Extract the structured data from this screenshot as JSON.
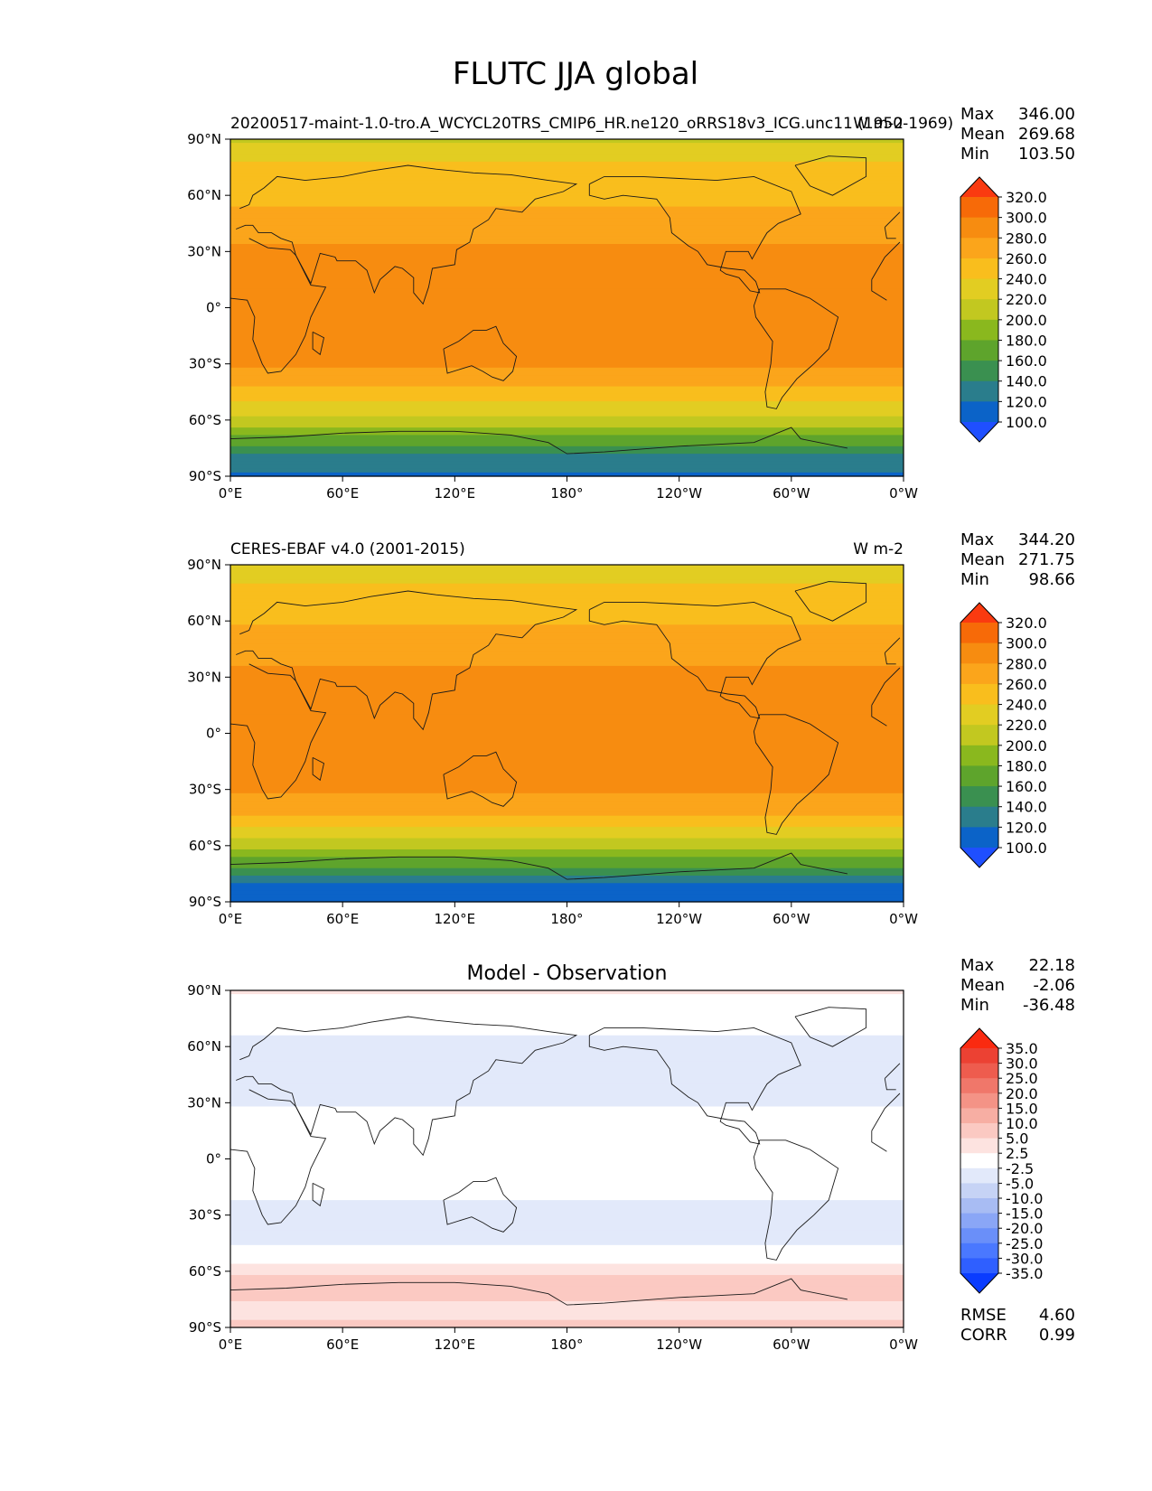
{
  "figure": {
    "title": "FLUTC JJA global"
  },
  "chart_data": [
    {
      "type": "heatmap",
      "panel": "test",
      "left_title": "20200517-maint-1.0-tro.A_WCYCL20TRS_CMIP6_HR.ne120_oRRS18v3_ICG.unc11 (1950-1969)",
      "right_title": "W m-2",
      "center_title": "",
      "stats": {
        "max_label": "Max",
        "max": "346.00",
        "mean_label": "Mean",
        "mean": "269.68",
        "min_label": "Min",
        "min": "103.50"
      },
      "colorbar": {
        "levels": [
          "100.0",
          "120.0",
          "140.0",
          "160.0",
          "180.0",
          "200.0",
          "220.0",
          "240.0",
          "260.0",
          "280.0",
          "300.0",
          "320.0"
        ],
        "colors": [
          "#1f4fff",
          "#0b63c8",
          "#2a7d8c",
          "#3a9050",
          "#5ea42c",
          "#8ab81e",
          "#c2c820",
          "#e2cd22",
          "#f9be1d",
          "#fba51b",
          "#f78c10",
          "#f76a08",
          "#fa3a10"
        ]
      },
      "x_ticks": [
        "0°E",
        "60°E",
        "120°E",
        "180°",
        "120°W",
        "60°W",
        "0°W"
      ],
      "y_ticks": [
        "90°N",
        "60°N",
        "30°N",
        "0°",
        "30°S",
        "60°S",
        "90°S"
      ],
      "zonal_mean_profile": [
        {
          "lat": 90,
          "value": 215
        },
        {
          "lat": 75,
          "value": 245
        },
        {
          "lat": 60,
          "value": 255
        },
        {
          "lat": 45,
          "value": 268
        },
        {
          "lat": 30,
          "value": 285
        },
        {
          "lat": 15,
          "value": 290
        },
        {
          "lat": 0,
          "value": 288
        },
        {
          "lat": -15,
          "value": 295
        },
        {
          "lat": -30,
          "value": 283
        },
        {
          "lat": -45,
          "value": 255
        },
        {
          "lat": -60,
          "value": 212
        },
        {
          "lat": -70,
          "value": 175
        },
        {
          "lat": -80,
          "value": 135
        },
        {
          "lat": -90,
          "value": 115
        }
      ]
    },
    {
      "type": "heatmap",
      "panel": "reference",
      "left_title": "CERES-EBAF v4.0 (2001-2015)",
      "right_title": "W m-2",
      "center_title": "",
      "stats": {
        "max_label": "Max",
        "max": "344.20",
        "mean_label": "Mean",
        "mean": "271.75",
        "min_label": "Min",
        "min": "98.66"
      },
      "colorbar": {
        "levels": [
          "100.0",
          "120.0",
          "140.0",
          "160.0",
          "180.0",
          "200.0",
          "220.0",
          "240.0",
          "260.0",
          "280.0",
          "300.0",
          "320.0"
        ],
        "colors": [
          "#1f4fff",
          "#0b63c8",
          "#2a7d8c",
          "#3a9050",
          "#5ea42c",
          "#8ab81e",
          "#c2c820",
          "#e2cd22",
          "#f9be1d",
          "#fba51b",
          "#f78c10",
          "#f76a08",
          "#fa3a10"
        ]
      },
      "x_ticks": [
        "0°E",
        "60°E",
        "120°E",
        "180°",
        "120°W",
        "60°W",
        "0°W"
      ],
      "y_ticks": [
        "90°N",
        "60°N",
        "30°N",
        "0°",
        "30°S",
        "60°S",
        "90°S"
      ],
      "zonal_mean_profile": [
        {
          "lat": 90,
          "value": 218
        },
        {
          "lat": 75,
          "value": 248
        },
        {
          "lat": 60,
          "value": 258
        },
        {
          "lat": 45,
          "value": 270
        },
        {
          "lat": 30,
          "value": 287
        },
        {
          "lat": 15,
          "value": 292
        },
        {
          "lat": 0,
          "value": 290
        },
        {
          "lat": -15,
          "value": 296
        },
        {
          "lat": -30,
          "value": 285
        },
        {
          "lat": -45,
          "value": 258
        },
        {
          "lat": -60,
          "value": 210
        },
        {
          "lat": -70,
          "value": 165
        },
        {
          "lat": -80,
          "value": 115
        },
        {
          "lat": -90,
          "value": 105
        }
      ]
    },
    {
      "type": "heatmap",
      "panel": "difference",
      "left_title": "",
      "right_title": "",
      "center_title": "Model - Observation",
      "stats": {
        "max_label": "Max",
        "max": "22.18",
        "mean_label": "Mean",
        "mean": "-2.06",
        "min_label": "Min",
        "min": "-36.48"
      },
      "extra_stats": {
        "rmse_label": "RMSE",
        "rmse": "4.60",
        "corr_label": "CORR",
        "corr": "0.99"
      },
      "colorbar": {
        "levels": [
          "-35.0",
          "-30.0",
          "-25.0",
          "-20.0",
          "-15.0",
          "-10.0",
          "-5.0",
          "-2.5",
          "2.5",
          "5.0",
          "10.0",
          "15.0",
          "20.0",
          "25.0",
          "30.0",
          "35.0"
        ],
        "colors": [
          "#0a3cff",
          "#2f5fff",
          "#4a78ff",
          "#6a8ff9",
          "#8aa6f6",
          "#a8bcf3",
          "#c6d3f5",
          "#e2e9fa",
          "#ffffff",
          "#fde3e0",
          "#fbc9c2",
          "#f7aea3",
          "#f49386",
          "#f0776a",
          "#ee5c4e",
          "#ec4133",
          "#fa2a10"
        ]
      },
      "x_ticks": [
        "0°E",
        "60°E",
        "120°E",
        "180°",
        "120°W",
        "60°W",
        "0°W"
      ],
      "y_ticks": [
        "90°N",
        "60°N",
        "30°N",
        "0°",
        "30°S",
        "60°S",
        "90°S"
      ],
      "zonal_mean_profile": [
        {
          "lat": 90,
          "value": 3
        },
        {
          "lat": 75,
          "value": 0
        },
        {
          "lat": 60,
          "value": -4
        },
        {
          "lat": 45,
          "value": -3
        },
        {
          "lat": 30,
          "value": -3
        },
        {
          "lat": 15,
          "value": 0
        },
        {
          "lat": 0,
          "value": -2
        },
        {
          "lat": -15,
          "value": -1
        },
        {
          "lat": -30,
          "value": -4
        },
        {
          "lat": -45,
          "value": -3
        },
        {
          "lat": -60,
          "value": 4
        },
        {
          "lat": -70,
          "value": 8
        },
        {
          "lat": -80,
          "value": 3
        },
        {
          "lat": -90,
          "value": 6
        }
      ]
    }
  ]
}
